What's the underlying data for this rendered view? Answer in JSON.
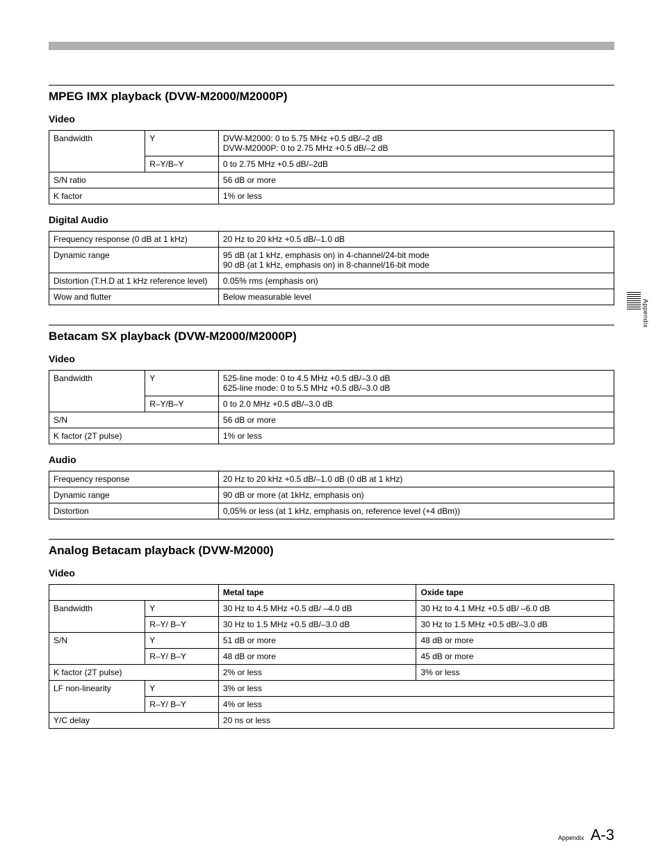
{
  "sideLabel": "Appendix",
  "footer": {
    "label": "Appendix",
    "pageNum": "A-3"
  },
  "sections": [
    {
      "title": "MPEG IMX playback (DVW-M2000/M2000P)",
      "groups": [
        {
          "title": "Video",
          "table": {
            "headerRow": null,
            "rows": [
              {
                "cells": [
                  {
                    "text": "Bandwidth",
                    "rowspan": 2
                  },
                  {
                    "text": "Y"
                  },
                  {
                    "text": "DVW-M2000: 0 to 5.75 MHz +0.5 dB/–2 dB\nDVW-M2000P: 0 to 2.75 MHz +0.5 dB/–2 dB"
                  }
                ]
              },
              {
                "cells": [
                  {
                    "text": "R–Y/B–Y"
                  },
                  {
                    "text": "0 to 2.75 MHz +0.5 dB/–2dB"
                  }
                ]
              },
              {
                "cells": [
                  {
                    "text": "S/N ratio",
                    "colspan": 2
                  },
                  {
                    "text": "56 dB or more"
                  }
                ]
              },
              {
                "cells": [
                  {
                    "text": "K factor",
                    "colspan": 2
                  },
                  {
                    "text": "1% or less"
                  }
                ]
              }
            ],
            "colWidths": [
              "17%",
              "13%",
              "70%"
            ]
          }
        },
        {
          "title": "Digital Audio",
          "table": {
            "headerRow": null,
            "rows": [
              {
                "cells": [
                  {
                    "text": "Frequency response (0 dB at 1 kHz)"
                  },
                  {
                    "text": "20 Hz to 20 kHz +0.5 dB/–1.0 dB"
                  }
                ]
              },
              {
                "cells": [
                  {
                    "text": "Dynamic range"
                  },
                  {
                    "text": "95 dB (at 1 kHz, emphasis on) in 4-channel/24-bit mode\n90 dB (at 1 kHz, emphasis on) in 8-channel/16-bit mode"
                  }
                ]
              },
              {
                "cells": [
                  {
                    "text": "Distortion (T.H.D at 1 kHz reference level)"
                  },
                  {
                    "text": "0.05% rms (emphasis on)"
                  }
                ]
              },
              {
                "cells": [
                  {
                    "text": "Wow and flutter"
                  },
                  {
                    "text": "Below measurable level"
                  }
                ]
              }
            ],
            "colWidths": [
              "30%",
              "70%"
            ]
          }
        }
      ]
    },
    {
      "title": "Betacam SX playback (DVW-M2000/M2000P)",
      "groups": [
        {
          "title": "Video",
          "table": {
            "headerRow": null,
            "rows": [
              {
                "cells": [
                  {
                    "text": "Bandwidth",
                    "rowspan": 2
                  },
                  {
                    "text": "Y"
                  },
                  {
                    "text": "525-line mode: 0 to 4.5 MHz +0.5 dB/–3.0 dB\n625-line mode: 0 to 5.5 MHz +0.5 dB/–3.0 dB"
                  }
                ]
              },
              {
                "cells": [
                  {
                    "text": "R–Y/B–Y"
                  },
                  {
                    "text": "0 to 2.0 MHz +0.5 dB/–3.0 dB"
                  }
                ]
              },
              {
                "cells": [
                  {
                    "text": "S/N",
                    "colspan": 2
                  },
                  {
                    "text": "56 dB or more"
                  }
                ]
              },
              {
                "cells": [
                  {
                    "text": "K factor (2T pulse)",
                    "colspan": 2
                  },
                  {
                    "text": "1% or less"
                  }
                ]
              }
            ],
            "colWidths": [
              "17%",
              "13%",
              "70%"
            ]
          }
        },
        {
          "title": "Audio",
          "table": {
            "headerRow": null,
            "rows": [
              {
                "cells": [
                  {
                    "text": "Frequency response"
                  },
                  {
                    "text": "20 Hz to 20 kHz +0.5 dB/–1.0 dB (0 dB at 1 kHz)"
                  }
                ]
              },
              {
                "cells": [
                  {
                    "text": "Dynamic range"
                  },
                  {
                    "text": "90 dB or more (at 1kHz, emphasis on)"
                  }
                ]
              },
              {
                "cells": [
                  {
                    "text": "Distortion"
                  },
                  {
                    "text": "0,05% or less (at 1 kHz, emphasis on, reference level (+4 dBm))"
                  }
                ]
              }
            ],
            "colWidths": [
              "30%",
              "70%"
            ]
          }
        }
      ]
    },
    {
      "title": "Analog Betacam playback (DVW-M2000)",
      "groups": [
        {
          "title": "Video",
          "table": {
            "headerRow": [
              "",
              "",
              "Metal tape",
              "Oxide tape"
            ],
            "headerColspan": [
              2,
              null,
              1,
              1
            ],
            "rows": [
              {
                "cells": [
                  {
                    "text": "Bandwidth",
                    "rowspan": 2
                  },
                  {
                    "text": "Y"
                  },
                  {
                    "text": "30 Hz to 4.5 MHz +0.5 dB/ –4.0 dB"
                  },
                  {
                    "text": "30 Hz to 4.1 MHz +0.5 dB/ –6.0 dB"
                  }
                ]
              },
              {
                "cells": [
                  {
                    "text": "R–Y/ B–Y"
                  },
                  {
                    "text": "30 Hz to 1.5 MHz +0.5 dB/–3.0 dB"
                  },
                  {
                    "text": "30 Hz to 1.5 MHz +0.5 dB/–3.0 dB"
                  }
                ]
              },
              {
                "cells": [
                  {
                    "text": "S/N",
                    "rowspan": 2
                  },
                  {
                    "text": "Y"
                  },
                  {
                    "text": "51 dB or more"
                  },
                  {
                    "text": "48 dB or more"
                  }
                ]
              },
              {
                "cells": [
                  {
                    "text": "R–Y/ B–Y"
                  },
                  {
                    "text": "48 dB or more"
                  },
                  {
                    "text": "45 dB or more"
                  }
                ]
              },
              {
                "cells": [
                  {
                    "text": "K factor (2T pulse)",
                    "colspan": 2
                  },
                  {
                    "text": "2% or less"
                  },
                  {
                    "text": "3% or less"
                  }
                ]
              },
              {
                "cells": [
                  {
                    "text": "LF non-linearity",
                    "rowspan": 2
                  },
                  {
                    "text": "Y"
                  },
                  {
                    "text": "3% or less",
                    "colspan": 2
                  }
                ]
              },
              {
                "cells": [
                  {
                    "text": "R–Y/ B–Y"
                  },
                  {
                    "text": "4% or less",
                    "colspan": 2
                  }
                ]
              },
              {
                "cells": [
                  {
                    "text": "Y/C delay",
                    "colspan": 2
                  },
                  {
                    "text": "20 ns or less",
                    "colspan": 2
                  }
                ]
              }
            ],
            "colWidths": [
              "17%",
              "13%",
              "35%",
              "35%"
            ]
          }
        }
      ]
    }
  ]
}
